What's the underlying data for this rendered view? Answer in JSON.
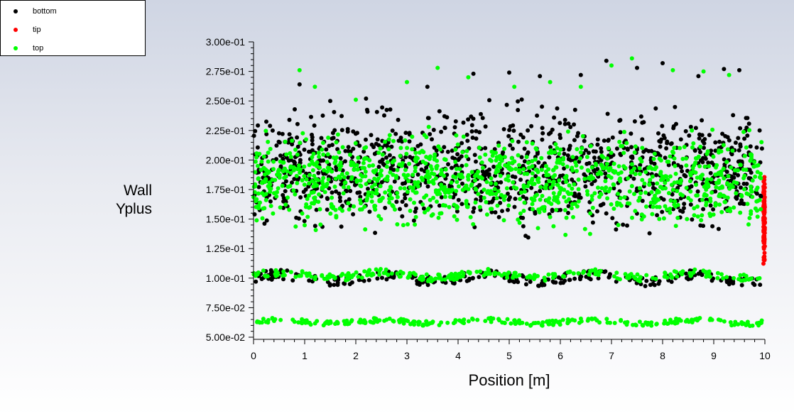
{
  "legend": {
    "items": [
      {
        "label": "bottom",
        "color": "#000000"
      },
      {
        "label": "tip",
        "color": "#ff0000"
      },
      {
        "label": "top",
        "color": "#00ff00"
      }
    ]
  },
  "chart_data": {
    "type": "scatter",
    "title": "",
    "xlabel": "Position [m]",
    "ylabel_lines": [
      "Wall",
      "Yplus"
    ],
    "xlim": [
      0,
      10
    ],
    "ylim": [
      0.05,
      0.3
    ],
    "x_ticks": [
      "0",
      "1",
      "2",
      "3",
      "4",
      "5",
      "6",
      "7",
      "8",
      "9",
      "10"
    ],
    "y_ticks": [
      "5.00e-02",
      "7.50e-02",
      "1.00e-01",
      "1.25e-01",
      "1.50e-01",
      "1.75e-01",
      "2.00e-01",
      "2.25e-01",
      "2.50e-01",
      "2.75e-01",
      "3.00e-01"
    ],
    "grid": false,
    "legend_position": "top-left",
    "series": [
      {
        "name": "bottom",
        "color": "#000000",
        "bands": [
          {
            "x_range": [
              0.0,
              9.95
            ],
            "y_range": [
              0.125,
              0.26
            ]
          },
          {
            "x_range": [
              0.0,
              9.95
            ],
            "y_range": [
              0.09,
              0.11
            ]
          }
        ],
        "outliers": [
          [
            0.9,
            0.264
          ],
          [
            1.5,
            0.25
          ],
          [
            2.2,
            0.252
          ],
          [
            3.4,
            0.262
          ],
          [
            4.3,
            0.273
          ],
          [
            5.0,
            0.274
          ],
          [
            5.6,
            0.271
          ],
          [
            6.4,
            0.272
          ],
          [
            6.9,
            0.284
          ],
          [
            7.5,
            0.278
          ],
          [
            8.0,
            0.282
          ],
          [
            8.7,
            0.271
          ],
          [
            9.2,
            0.277
          ],
          [
            9.5,
            0.276
          ]
        ]
      },
      {
        "name": "tip",
        "color": "#ff0000",
        "bands": [
          {
            "x_range": [
              9.97,
              10.0
            ],
            "y_range": [
              0.1,
              0.198
            ]
          }
        ],
        "outliers": []
      },
      {
        "name": "top",
        "color": "#00ff00",
        "bands": [
          {
            "x_range": [
              0.0,
              9.95
            ],
            "y_range": [
              0.13,
              0.235
            ]
          },
          {
            "x_range": [
              0.0,
              9.95
            ],
            "y_range": [
              0.095,
              0.11
            ]
          },
          {
            "x_range": [
              0.0,
              9.95
            ],
            "y_range": [
              0.058,
              0.068
            ]
          }
        ],
        "outliers": [
          [
            0.9,
            0.276
          ],
          [
            1.2,
            0.262
          ],
          [
            2.0,
            0.251
          ],
          [
            3.0,
            0.266
          ],
          [
            3.6,
            0.278
          ],
          [
            4.2,
            0.27
          ],
          [
            5.1,
            0.262
          ],
          [
            5.8,
            0.266
          ],
          [
            6.4,
            0.262
          ],
          [
            7.0,
            0.28
          ],
          [
            7.4,
            0.286
          ],
          [
            8.2,
            0.276
          ],
          [
            8.8,
            0.275
          ],
          [
            9.3,
            0.272
          ]
        ]
      }
    ]
  }
}
